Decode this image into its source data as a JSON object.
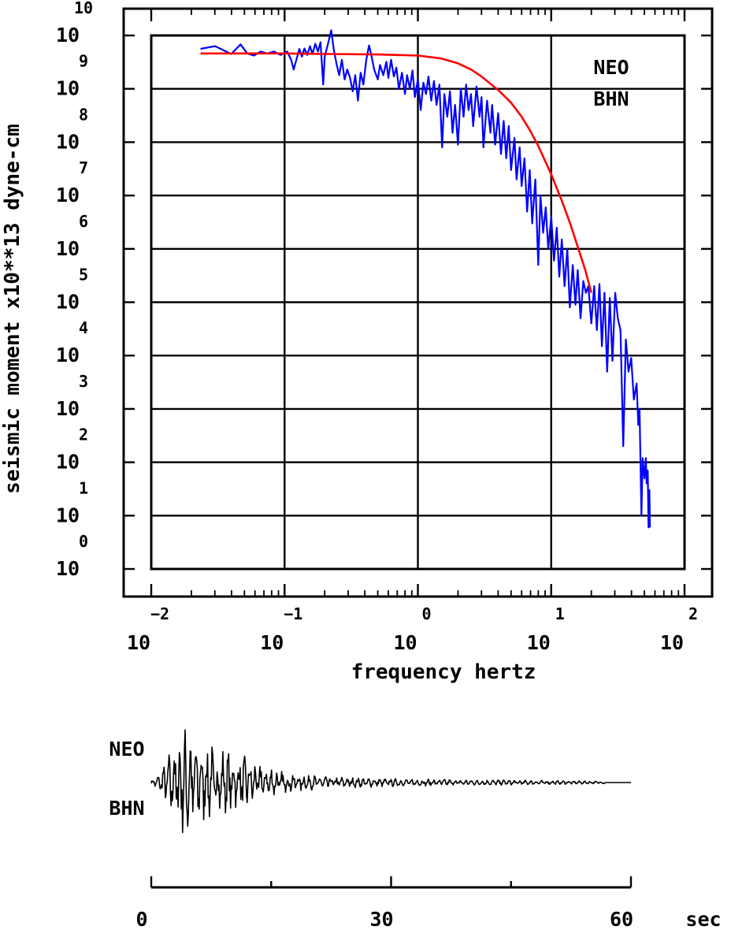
{
  "chart_data": [
    {
      "type": "line",
      "xlabel": "frequency hertz",
      "ylabel": "seismic moment x10**13 dyne-cm",
      "x_scale": "log",
      "y_scale": "log",
      "xlim": [
        0.01,
        100
      ],
      "ylim": [
        1,
        10000000000
      ],
      "x_ticks": [
        {
          "base": "10",
          "exp": "−2"
        },
        {
          "base": "10",
          "exp": "−1"
        },
        {
          "base": "10",
          "exp": "0"
        },
        {
          "base": "10",
          "exp": "1"
        },
        {
          "base": "10",
          "exp": "2"
        }
      ],
      "y_ticks": [
        {
          "base": "10",
          "exp": "0"
        },
        {
          "base": "10",
          "exp": "1"
        },
        {
          "base": "10",
          "exp": "2"
        },
        {
          "base": "10",
          "exp": "3"
        },
        {
          "base": "10",
          "exp": "4"
        },
        {
          "base": "10",
          "exp": "5"
        },
        {
          "base": "10",
          "exp": "6"
        },
        {
          "base": "10",
          "exp": "7"
        },
        {
          "base": "10",
          "exp": "8"
        },
        {
          "base": "10",
          "exp": "9"
        },
        {
          "base": "10",
          "exp": "10"
        }
      ],
      "grid": true,
      "annotation": {
        "line1": "NEO",
        "line2": "BHN"
      },
      "series": [
        {
          "color": "#0000ff",
          "kind": "observed spectrum",
          "points": [
            [
              0.0234,
              5600000000.0
            ],
            [
              0.0302,
              6300000000.0
            ],
            [
              0.0398,
              4500000000.0
            ],
            [
              0.0468,
              6800000000.0
            ],
            [
              0.0525,
              4600000000.0
            ],
            [
              0.0589,
              4200000000.0
            ],
            [
              0.0661,
              5000000000.0
            ],
            [
              0.0741,
              4600000000.0
            ],
            [
              0.0832,
              5000000000.0
            ],
            [
              0.0933,
              4300000000.0
            ],
            [
              0.1047,
              5000000000.0
            ],
            [
              0.112,
              3500000000.0
            ],
            [
              0.117,
              2300000000.0
            ],
            [
              0.123,
              3600000000.0
            ],
            [
              0.129,
              5600000000.0
            ],
            [
              0.135,
              4000000000.0
            ],
            [
              0.141,
              5700000000.0
            ],
            [
              0.148,
              4300000000.0
            ],
            [
              0.155,
              6300000000.0
            ],
            [
              0.162,
              4500000000.0
            ],
            [
              0.17,
              7000000000.0
            ],
            [
              0.178,
              5000000000.0
            ],
            [
              0.186,
              7500000000.0
            ],
            [
              0.195,
              1200000000.0
            ],
            [
              0.2,
              4000000000.0
            ],
            [
              0.214,
              7800000000.0
            ],
            [
              0.224,
              12500000000.0
            ],
            [
              0.234,
              5500000000.0
            ],
            [
              0.245,
              3000000000.0
            ],
            [
              0.257,
              1800000000.0
            ],
            [
              0.269,
              3500000000.0
            ],
            [
              0.282,
              1500000000.0
            ],
            [
              0.295,
              2300000000.0
            ],
            [
              0.31,
              1600000000.0
            ],
            [
              0.324,
              900000000.0
            ],
            [
              0.339,
              1800000000.0
            ],
            [
              0.355,
              600000000.0
            ],
            [
              0.372,
              2000000000.0
            ],
            [
              0.39,
              1200000000.0
            ],
            [
              0.41,
              3500000000.0
            ],
            [
              0.43,
              6500000000.0
            ],
            [
              0.45,
              4000000000.0
            ],
            [
              0.47,
              2300000000.0
            ],
            [
              0.5,
              1500000000.0
            ],
            [
              0.52,
              2800000000.0
            ],
            [
              0.55,
              1800000000.0
            ],
            [
              0.58,
              3200000000.0
            ],
            [
              0.6,
              1600000000.0
            ],
            [
              0.63,
              3500000000.0
            ],
            [
              0.66,
              1700000000.0
            ],
            [
              0.69,
              2500000000.0
            ],
            [
              0.72,
              1000000000.0
            ],
            [
              0.76,
              2000000000.0
            ],
            [
              0.8,
              800000000.0
            ],
            [
              0.83,
              1800000000.0
            ],
            [
              0.87,
              1000000000.0
            ],
            [
              0.91,
              2200000000.0
            ],
            [
              0.95,
              700000000.0
            ],
            [
              1.0,
              1500000000.0
            ],
            [
              1.05,
              400000000.0
            ],
            [
              1.1,
              1300000000.0
            ],
            [
              1.15,
              800000000.0
            ],
            [
              1.2,
              1700000000.0
            ],
            [
              1.26,
              600000000.0
            ],
            [
              1.32,
              1400000000.0
            ],
            [
              1.38,
              500000000.0
            ],
            [
              1.45,
              1200000000.0
            ],
            [
              1.52,
              80000000.0
            ],
            [
              1.58,
              800000000.0
            ],
            [
              1.66,
              300000000.0
            ],
            [
              1.74,
              900000000.0
            ],
            [
              1.82,
              150000000.0
            ],
            [
              1.9,
              500000000.0
            ],
            [
              2.0,
              90000000.0
            ],
            [
              2.1,
              1000000000.0
            ],
            [
              2.2,
              300000000.0
            ],
            [
              2.3,
              1200000000.0
            ],
            [
              2.4,
              400000000.0
            ],
            [
              2.5,
              800000000.0
            ],
            [
              2.6,
              200000000.0
            ],
            [
              2.75,
              1100000000.0
            ],
            [
              2.9,
              300000000.0
            ],
            [
              3.0,
              700000000.0
            ],
            [
              3.1,
              80000000.0
            ],
            [
              3.3,
              600000000.0
            ],
            [
              3.5,
              150000000.0
            ],
            [
              3.6,
              500000000.0
            ],
            [
              3.8,
              90000000.0
            ],
            [
              4.0,
              350000000.0
            ],
            [
              4.2,
              60000000.0
            ],
            [
              4.4,
              250000000.0
            ],
            [
              4.6,
              50000000.0
            ],
            [
              4.8,
              200000000.0
            ],
            [
              5.0,
              30000000.0
            ],
            [
              5.3,
              120000000.0
            ],
            [
              5.5,
              20000000.0
            ],
            [
              5.8,
              80000000.0
            ],
            [
              6.0,
              15000000.0
            ],
            [
              6.3,
              50000000.0
            ],
            [
              6.6,
              5000000.0
            ],
            [
              6.9,
              30000000.0
            ],
            [
              7.2,
              3000000.0
            ],
            [
              7.6,
              20000000.0
            ],
            [
              8.0,
              500000.0
            ],
            [
              8.3,
              10000000.0
            ],
            [
              8.7,
              2000000.0
            ],
            [
              9.1,
              6000000.0
            ],
            [
              9.5,
              1000000.0
            ],
            [
              10.0,
              4000000.0
            ],
            [
              10.5,
              600000.0
            ],
            [
              11.0,
              2500000.0
            ],
            [
              11.5,
              300000.0
            ],
            [
              12.0,
              1500000.0
            ],
            [
              12.6,
              200000.0
            ],
            [
              13.2,
              1000000.0
            ],
            [
              13.8,
              80000.0
            ],
            [
              14.5,
              500000.0
            ],
            [
              15.2,
              90000.0
            ],
            [
              15.8,
              400000.0
            ],
            [
              16.6,
              50000.0
            ],
            [
              17.4,
              250000.0
            ],
            [
              18.2,
              150000.0
            ],
            [
              19.0,
              200000.0
            ],
            [
              20.0,
              40000.0
            ],
            [
              21.0,
              200000.0
            ],
            [
              22.0,
              30000.0
            ],
            [
              23.0,
              220000.0
            ],
            [
              24.0,
              15000.0
            ],
            [
              25.1,
              150000.0
            ],
            [
              26.3,
              5000.0
            ],
            [
              27.5,
              120000.0
            ],
            [
              28.8,
              8000.0
            ],
            [
              30.2,
              150000.0
            ],
            [
              31.6,
              50000.0
            ],
            [
              33.1,
              30000.0
            ],
            [
              34.7,
              200.0
            ],
            [
              36.3,
              20000.0
            ],
            [
              38.0,
              5000.0
            ],
            [
              39.8,
              9000.0
            ],
            [
              41.7,
              1500.0
            ],
            [
              43.7,
              3000.0
            ],
            [
              45.0,
              500.0
            ],
            [
              46.0,
              1000.0
            ],
            [
              47.5,
              10
            ],
            [
              48.5,
              120.0
            ],
            [
              50.0,
              50
            ],
            [
              51.3,
              120.0
            ],
            [
              52.0,
              40
            ],
            [
              53.0,
              70
            ],
            [
              53.7,
              6
            ],
            [
              54.5,
              30
            ],
            [
              55.0,
              6
            ]
          ]
        },
        {
          "color": "#ff0000",
          "kind": "model fit",
          "points": [
            [
              0.0234,
              4600000000.0
            ],
            [
              0.05,
              4600000000.0
            ],
            [
              0.1,
              4600000000.0
            ],
            [
              0.2,
              4500000000.0
            ],
            [
              0.5,
              4400000000.0
            ],
            [
              1.0,
              4200000000.0
            ],
            [
              1.5,
              3700000000.0
            ],
            [
              2.0,
              3000000000.0
            ],
            [
              2.5,
              2300000000.0
            ],
            [
              3.0,
              1700000000.0
            ],
            [
              4.0,
              950000000.0
            ],
            [
              5.0,
              550000000.0
            ],
            [
              6.0,
              300000000.0
            ],
            [
              7.0,
              160000000.0
            ],
            [
              8.0,
              85000000.0
            ],
            [
              10.0,
              25000000.0
            ],
            [
              12.0,
              8000000.0
            ],
            [
              14.0,
              2800000.0
            ],
            [
              16.0,
              1000000.0
            ],
            [
              18.0,
              400000.0
            ],
            [
              20.0,
              150000.0
            ]
          ]
        }
      ]
    },
    {
      "type": "line",
      "kind": "seismogram",
      "color": "#000000",
      "annotation": {
        "line1": "NEO",
        "line2": "BHN"
      },
      "xlim": [
        0,
        60
      ],
      "x_ticks": [
        "0",
        "30",
        "60"
      ],
      "x_unit": "sec",
      "trace_end_sec": 56.8,
      "envelope": [
        [
          0.0,
          0.03
        ],
        [
          1.0,
          0.15
        ],
        [
          2.0,
          0.45
        ],
        [
          3.0,
          0.8
        ],
        [
          3.8,
          0.9
        ],
        [
          4.5,
          1.0
        ],
        [
          6.0,
          0.75
        ],
        [
          8.0,
          0.62
        ],
        [
          10.0,
          0.55
        ],
        [
          13.0,
          0.38
        ],
        [
          16.0,
          0.22
        ],
        [
          20.0,
          0.13
        ],
        [
          25.0,
          0.09
        ],
        [
          30.0,
          0.07
        ],
        [
          35.0,
          0.06
        ],
        [
          40.0,
          0.05
        ],
        [
          45.0,
          0.045
        ],
        [
          50.0,
          0.035
        ],
        [
          56.8,
          0.02
        ]
      ]
    }
  ]
}
